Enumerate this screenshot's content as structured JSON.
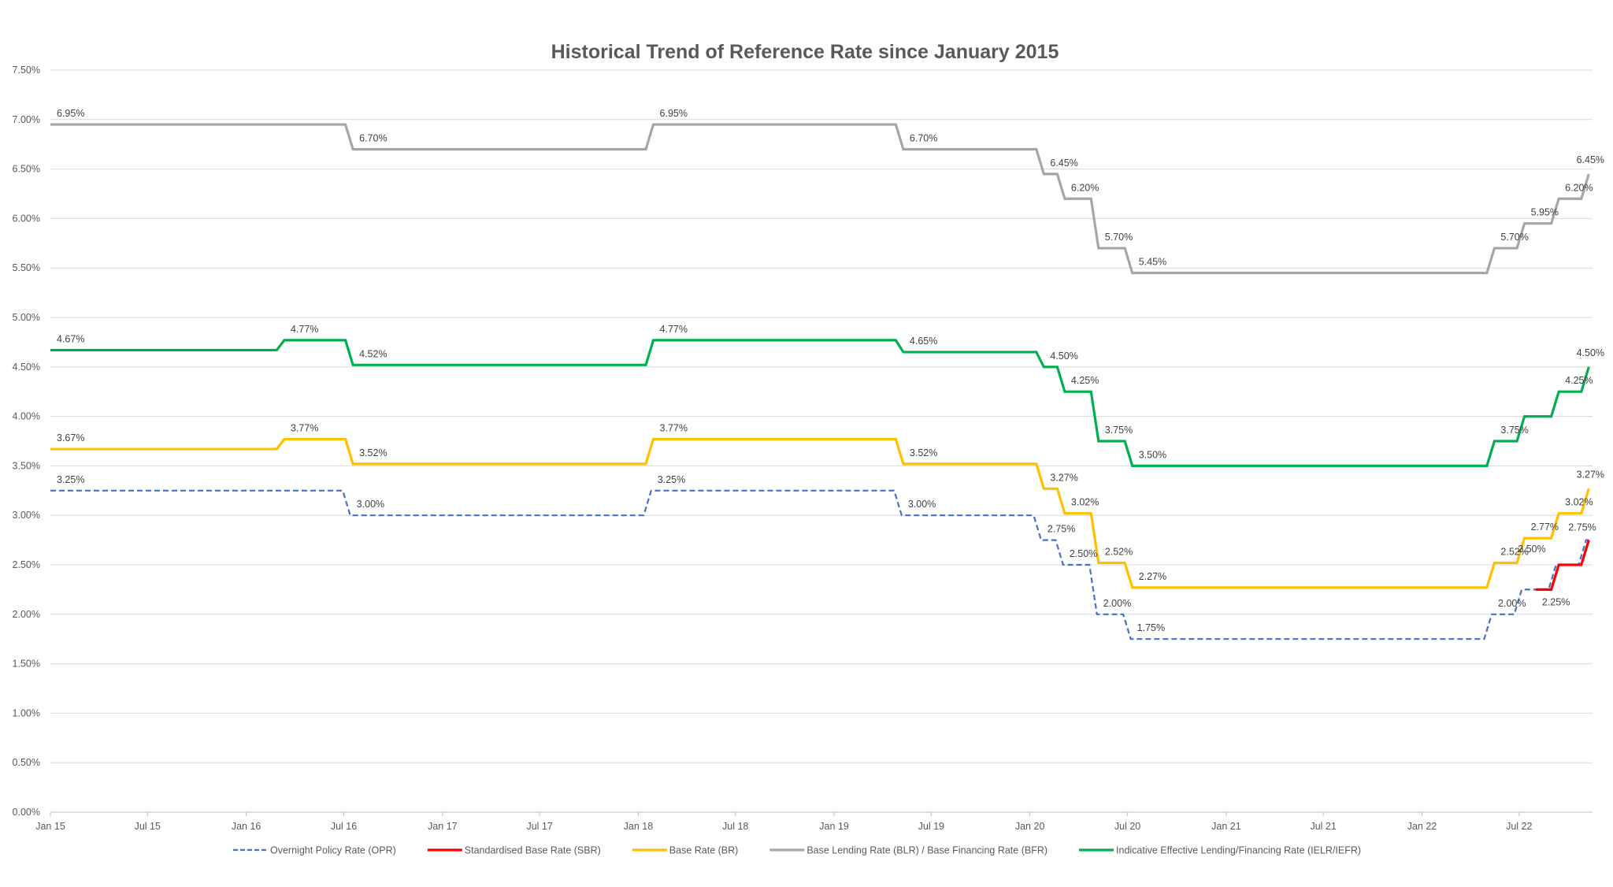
{
  "chart_data": {
    "type": "line",
    "title": "Historical Trend of Reference Rate since January 2015",
    "xlabel": "",
    "ylabel": "",
    "ylim": [
      0,
      7.5
    ],
    "y_ticks": [
      "0.00%",
      "0.50%",
      "1.00%",
      "1.50%",
      "2.00%",
      "2.50%",
      "3.00%",
      "3.50%",
      "4.00%",
      "4.50%",
      "5.00%",
      "5.50%",
      "6.00%",
      "6.50%",
      "7.00%",
      "7.50%"
    ],
    "x_range": [
      "2015-01-01",
      "2022-11-10"
    ],
    "x_ticks": [
      {
        "date": "2015-01-01",
        "label": "Jan 15"
      },
      {
        "date": "2015-07-01",
        "label": "Jul 15"
      },
      {
        "date": "2016-01-01",
        "label": "Jan 16"
      },
      {
        "date": "2016-07-01",
        "label": "Jul 16"
      },
      {
        "date": "2017-01-01",
        "label": "Jan 17"
      },
      {
        "date": "2017-07-01",
        "label": "Jul 17"
      },
      {
        "date": "2018-01-01",
        "label": "Jan 18"
      },
      {
        "date": "2018-07-01",
        "label": "Jul 18"
      },
      {
        "date": "2019-01-01",
        "label": "Jan 19"
      },
      {
        "date": "2019-07-01",
        "label": "Jul 19"
      },
      {
        "date": "2020-01-01",
        "label": "Jan 20"
      },
      {
        "date": "2020-07-01",
        "label": "Jul 20"
      },
      {
        "date": "2021-01-01",
        "label": "Jan 21"
      },
      {
        "date": "2021-07-01",
        "label": "Jul 21"
      },
      {
        "date": "2022-01-01",
        "label": "Jan 22"
      },
      {
        "date": "2022-07-01",
        "label": "Jul 22"
      }
    ],
    "grid": true,
    "legend_position": "bottom",
    "end_date": "2022-11-08",
    "series": [
      {
        "name": "Base Lending Rate (BLR) / Base Financing Rate (BFR)",
        "color": "#A6A6A6",
        "dashed": false,
        "changes": [
          {
            "date": "2015-01-01",
            "value": 6.95,
            "label": "6.95%"
          },
          {
            "date": "2016-07-18",
            "value": 6.7,
            "label": "6.70%"
          },
          {
            "date": "2018-01-29",
            "value": 6.95,
            "label": "6.95%"
          },
          {
            "date": "2019-05-10",
            "value": 6.7,
            "label": "6.70%"
          },
          {
            "date": "2020-01-27",
            "value": 6.45,
            "label": "6.45%"
          },
          {
            "date": "2020-03-06",
            "value": 6.2,
            "label": "6.20%"
          },
          {
            "date": "2020-05-08",
            "value": 5.7,
            "label": "5.70%"
          },
          {
            "date": "2020-07-10",
            "value": 5.45,
            "label": "5.45%"
          },
          {
            "date": "2022-05-16",
            "value": 5.7,
            "label": "5.70%"
          },
          {
            "date": "2022-07-11",
            "value": 5.95,
            "label": "5.95%"
          },
          {
            "date": "2022-09-13",
            "value": 6.2,
            "label": "6.20%"
          },
          {
            "date": "2022-11-08",
            "value": 6.45,
            "label": "6.45%"
          }
        ]
      },
      {
        "name": "Indicative Effective Lending/Financing Rate (IELR/IEFR)",
        "color": "#00B050",
        "dashed": false,
        "changes": [
          {
            "date": "2015-01-01",
            "value": 4.67,
            "label": "4.67%"
          },
          {
            "date": "2016-03-12",
            "value": 4.77,
            "label": "4.77%"
          },
          {
            "date": "2016-07-18",
            "value": 4.52,
            "label": "4.52%"
          },
          {
            "date": "2018-01-29",
            "value": 4.77,
            "label": "4.77%"
          },
          {
            "date": "2019-05-10",
            "value": 4.65,
            "label": "4.65%"
          },
          {
            "date": "2020-01-27",
            "value": 4.5,
            "label": "4.50%"
          },
          {
            "date": "2020-03-06",
            "value": 4.25,
            "label": "4.25%"
          },
          {
            "date": "2020-05-08",
            "value": 3.75,
            "label": "3.75%"
          },
          {
            "date": "2020-07-10",
            "value": 3.5,
            "label": "3.50%"
          },
          {
            "date": "2022-05-16",
            "value": 3.75,
            "label": "3.75%"
          },
          {
            "date": "2022-07-11",
            "value": 4.0
          },
          {
            "date": "2022-09-13",
            "value": 4.25,
            "label": "4.25%"
          },
          {
            "date": "2022-11-08",
            "value": 4.5,
            "label": "4.50%"
          }
        ]
      },
      {
        "name": "Base Rate (BR)",
        "color": "#FFC000",
        "dashed": false,
        "changes": [
          {
            "date": "2015-01-01",
            "value": 3.67,
            "label": "3.67%"
          },
          {
            "date": "2016-03-12",
            "value": 3.77,
            "label": "3.77%"
          },
          {
            "date": "2016-07-18",
            "value": 3.52,
            "label": "3.52%"
          },
          {
            "date": "2018-01-29",
            "value": 3.77,
            "label": "3.77%"
          },
          {
            "date": "2019-05-10",
            "value": 3.52,
            "label": "3.52%"
          },
          {
            "date": "2020-01-27",
            "value": 3.27,
            "label": "3.27%"
          },
          {
            "date": "2020-03-06",
            "value": 3.02,
            "label": "3.02%"
          },
          {
            "date": "2020-05-08",
            "value": 2.52,
            "label": "2.52%"
          },
          {
            "date": "2020-07-10",
            "value": 2.27,
            "label": "2.27%"
          },
          {
            "date": "2022-05-16",
            "value": 2.52,
            "label": "2.52%"
          },
          {
            "date": "2022-07-11",
            "value": 2.77,
            "label": "2.77%"
          },
          {
            "date": "2022-09-13",
            "value": 3.02,
            "label": "3.02%"
          },
          {
            "date": "2022-11-08",
            "value": 3.27,
            "label": "3.27%"
          }
        ]
      },
      {
        "name": "Overnight Policy Rate (OPR)",
        "color": "#4472C4",
        "dashed": true,
        "changes": [
          {
            "date": "2015-01-01",
            "value": 3.25,
            "label": "3.25%"
          },
          {
            "date": "2016-07-13",
            "value": 3.0,
            "label": "3.00%"
          },
          {
            "date": "2018-01-25",
            "value": 3.25,
            "label": "3.25%"
          },
          {
            "date": "2019-05-07",
            "value": 3.0,
            "label": "3.00%"
          },
          {
            "date": "2020-01-22",
            "value": 2.75,
            "label": "2.75%"
          },
          {
            "date": "2020-03-03",
            "value": 2.5,
            "label": "2.50%"
          },
          {
            "date": "2020-05-05",
            "value": 2.0,
            "label": "2.00%"
          },
          {
            "date": "2020-07-07",
            "value": 1.75,
            "label": "1.75%"
          },
          {
            "date": "2022-05-11",
            "value": 2.0,
            "label": "2.00%"
          },
          {
            "date": "2022-07-06",
            "value": 2.25
          },
          {
            "date": "2022-09-08",
            "value": 2.5
          },
          {
            "date": "2022-11-03",
            "value": 2.75
          }
        ]
      },
      {
        "name": "Standardised Base Rate (SBR)",
        "color": "#FF0000",
        "dashed": false,
        "changes": [
          {
            "date": "2022-08-01",
            "value": 2.25,
            "label": "2.25%"
          },
          {
            "date": "2022-09-13",
            "value": 2.5,
            "label": "2.50%"
          },
          {
            "date": "2022-11-08",
            "value": 2.75,
            "label": "2.75%"
          }
        ]
      }
    ],
    "legend_order": [
      3,
      4,
      2,
      0,
      1
    ]
  }
}
